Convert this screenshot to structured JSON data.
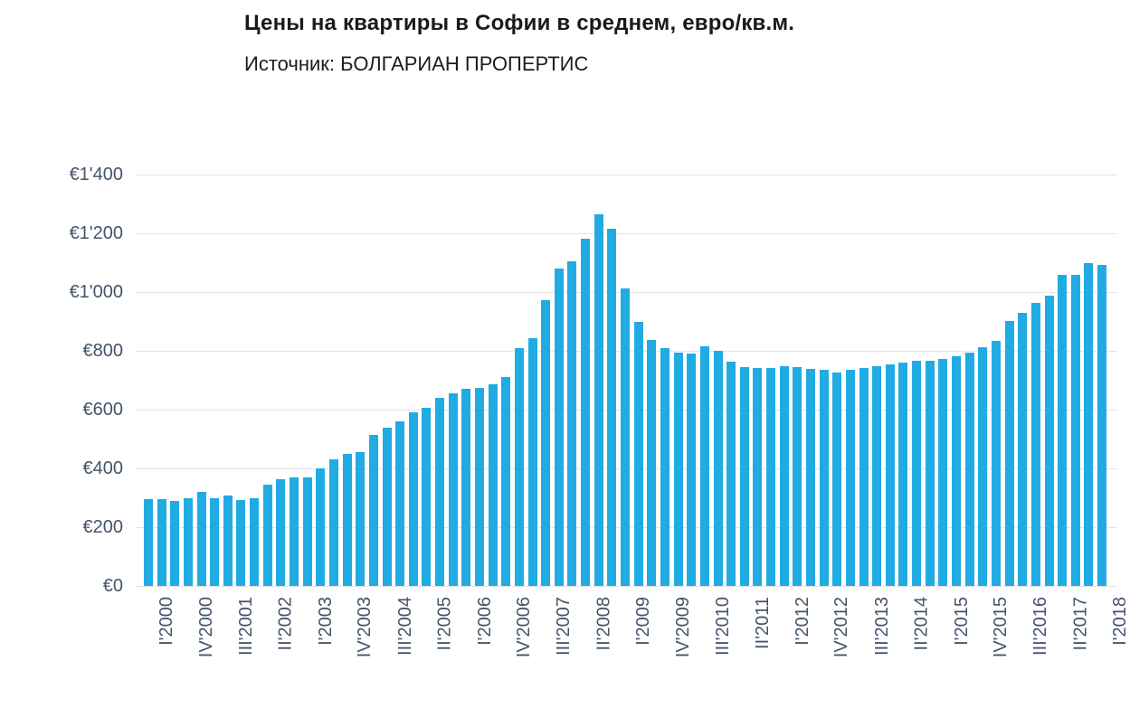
{
  "header": {
    "title": "Цены на квартиры в Софии в среднем, евро/кв.м.",
    "subtitle": "Источник: БОЛГАРИАН ПРОПЕРТИС"
  },
  "colors": {
    "bar": "#21abe3",
    "axis_label": "#44546a",
    "gridline": "#e4e4e4",
    "title_text": "#1a1a1a",
    "background": "#ffffff"
  },
  "y_axis": {
    "tick_labels_top_to_bottom": [
      "€1'400",
      "€1'200",
      "€1'000",
      "€800",
      "€600",
      "€400",
      "€200",
      "€0"
    ]
  },
  "x_axis": {
    "tick_labels": [
      "I'2000",
      "IV'2000",
      "III'2001",
      "II'2002",
      "I'2003",
      "IV'2003",
      "III'2004",
      "II'2005",
      "I'2006",
      "IV'2006",
      "III'2007",
      "II'2008",
      "I'2009",
      "IV'2009",
      "III'2010",
      "II'2011",
      "I'2012",
      "IV'2012",
      "III'2013",
      "II'2014",
      "I'2015",
      "IV'2015",
      "III'2016",
      "II'2017",
      "I'2018"
    ],
    "label_every_n_bars": 3
  },
  "chart_data": {
    "type": "bar",
    "title": "Цены на квартиры в Софии в среднем, евро/кв.м.",
    "source": "Источник: БОЛГАРИАН ПРОПЕРТИС",
    "xlabel": "",
    "ylabel": "евро/кв.м.",
    "ylim": [
      0,
      1400
    ],
    "y_tick_step": 200,
    "y_tick_prefix": "€",
    "y_thousands_separator": "'",
    "grid": "horizontal",
    "legend": "none",
    "bar_color": "#21abe3",
    "categories": [
      "I'2000",
      "II'2000",
      "III'2000",
      "IV'2000",
      "I'2001",
      "II'2001",
      "III'2001",
      "IV'2001",
      "I'2002",
      "II'2002",
      "III'2002",
      "IV'2002",
      "I'2003",
      "II'2003",
      "III'2003",
      "IV'2003",
      "I'2004",
      "II'2004",
      "III'2004",
      "IV'2004",
      "I'2005",
      "II'2005",
      "III'2005",
      "IV'2005",
      "I'2006",
      "II'2006",
      "III'2006",
      "IV'2006",
      "I'2007",
      "II'2007",
      "III'2007",
      "IV'2007",
      "I'2008",
      "II'2008",
      "III'2008",
      "IV'2008",
      "I'2009",
      "II'2009",
      "III'2009",
      "IV'2009",
      "I'2010",
      "II'2010",
      "III'2010",
      "IV'2010",
      "I'2011",
      "II'2011",
      "III'2011",
      "IV'2011",
      "I'2012",
      "II'2012",
      "III'2012",
      "IV'2012",
      "I'2013",
      "II'2013",
      "III'2013",
      "IV'2013",
      "I'2014",
      "II'2014",
      "III'2014",
      "IV'2014",
      "I'2015",
      "II'2015",
      "III'2015",
      "IV'2015",
      "I'2016",
      "II'2016",
      "III'2016",
      "IV'2016",
      "I'2017",
      "II'2017",
      "III'2017",
      "IV'2017",
      "I'2018"
    ],
    "values": [
      295,
      295,
      291,
      298,
      321,
      300,
      307,
      294,
      298,
      344,
      364,
      371,
      371,
      401,
      432,
      449,
      456,
      516,
      540,
      560,
      592,
      608,
      642,
      657,
      672,
      675,
      686,
      710,
      811,
      844,
      974,
      1080,
      1105,
      1182,
      1266,
      1217,
      1013,
      900,
      838,
      811,
      795,
      792,
      815,
      801,
      765,
      746,
      741,
      743,
      749,
      746,
      739,
      736,
      728,
      736,
      741,
      748,
      753,
      762,
      767,
      767,
      774,
      782,
      795,
      813,
      835,
      902,
      931,
      962,
      988,
      1059,
      1059,
      1098,
      1093
    ]
  }
}
